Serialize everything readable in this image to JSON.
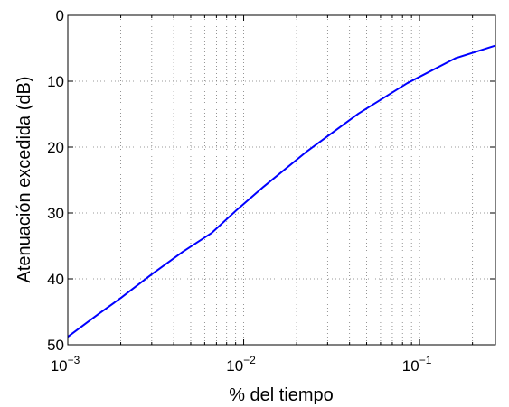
{
  "chart_data": {
    "type": "line",
    "title": "",
    "xlabel": "% del tiempo",
    "ylabel": "Atenuación excedida (dB)",
    "x_scale": "log",
    "xlim": [
      0.001,
      0.27
    ],
    "ylim": [
      0,
      50
    ],
    "y_reversed": true,
    "grid": true,
    "x_ticks": [
      {
        "value": 0.001,
        "base": "10",
        "exp": "−3"
      },
      {
        "value": 0.01,
        "base": "10",
        "exp": "−2"
      },
      {
        "value": 0.1,
        "base": "10",
        "exp": "−1"
      }
    ],
    "y_ticks": [
      "0",
      "10",
      "20",
      "30",
      "40",
      "50"
    ],
    "series": [
      {
        "color": "#0000ff",
        "x": [
          0.001,
          0.0015,
          0.002,
          0.003,
          0.0045,
          0.0066,
          0.009,
          0.013,
          0.023,
          0.045,
          0.085,
          0.16,
          0.27
        ],
        "y": [
          48.8,
          45.3,
          42.9,
          39.3,
          35.9,
          33.0,
          29.7,
          26.0,
          20.6,
          14.9,
          10.3,
          6.5,
          4.6
        ]
      }
    ]
  }
}
